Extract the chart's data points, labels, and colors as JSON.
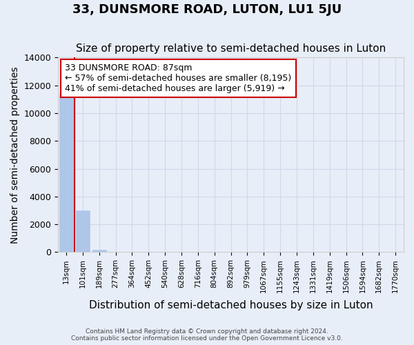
{
  "title": "33, DUNSMORE ROAD, LUTON, LU1 5JU",
  "subtitle": "Size of property relative to semi-detached houses in Luton",
  "xlabel": "Distribution of semi-detached houses by size in Luton",
  "ylabel": "Number of semi-detached properties",
  "footer_line1": "Contains HM Land Registry data © Crown copyright and database right 2024.",
  "footer_line2": "Contains public sector information licensed under the Open Government Licence v3.0.",
  "bin_labels": [
    "13sqm",
    "101sqm",
    "189sqm",
    "277sqm",
    "364sqm",
    "452sqm",
    "540sqm",
    "628sqm",
    "716sqm",
    "804sqm",
    "892sqm",
    "979sqm",
    "1067sqm",
    "1155sqm",
    "1243sqm",
    "1331sqm",
    "1419sqm",
    "1506sqm",
    "1594sqm",
    "1682sqm",
    "1770sqm"
  ],
  "bar_values": [
    11450,
    3000,
    150,
    0,
    0,
    0,
    0,
    0,
    0,
    0,
    0,
    0,
    0,
    0,
    0,
    0,
    0,
    0,
    0,
    0,
    0
  ],
  "bar_color": "#aec6e8",
  "bar_edge_color": "#aec6e8",
  "grid_color": "#d0d8e8",
  "background_color": "#e8eef8",
  "ylim": [
    0,
    14000
  ],
  "yticks": [
    0,
    2000,
    4000,
    6000,
    8000,
    10000,
    12000,
    14000
  ],
  "property_size": 87,
  "red_line_color": "#cc0000",
  "annotation_text": "33 DUNSMORE ROAD: 87sqm\n← 57% of semi-detached houses are smaller (8,195)\n41% of semi-detached houses are larger (5,919) →",
  "annotation_box_color": "#ffffff",
  "annotation_border_color": "#cc0000",
  "title_fontsize": 13,
  "subtitle_fontsize": 11,
  "annotation_fontsize": 9,
  "xlabel_fontsize": 11,
  "ylabel_fontsize": 10
}
